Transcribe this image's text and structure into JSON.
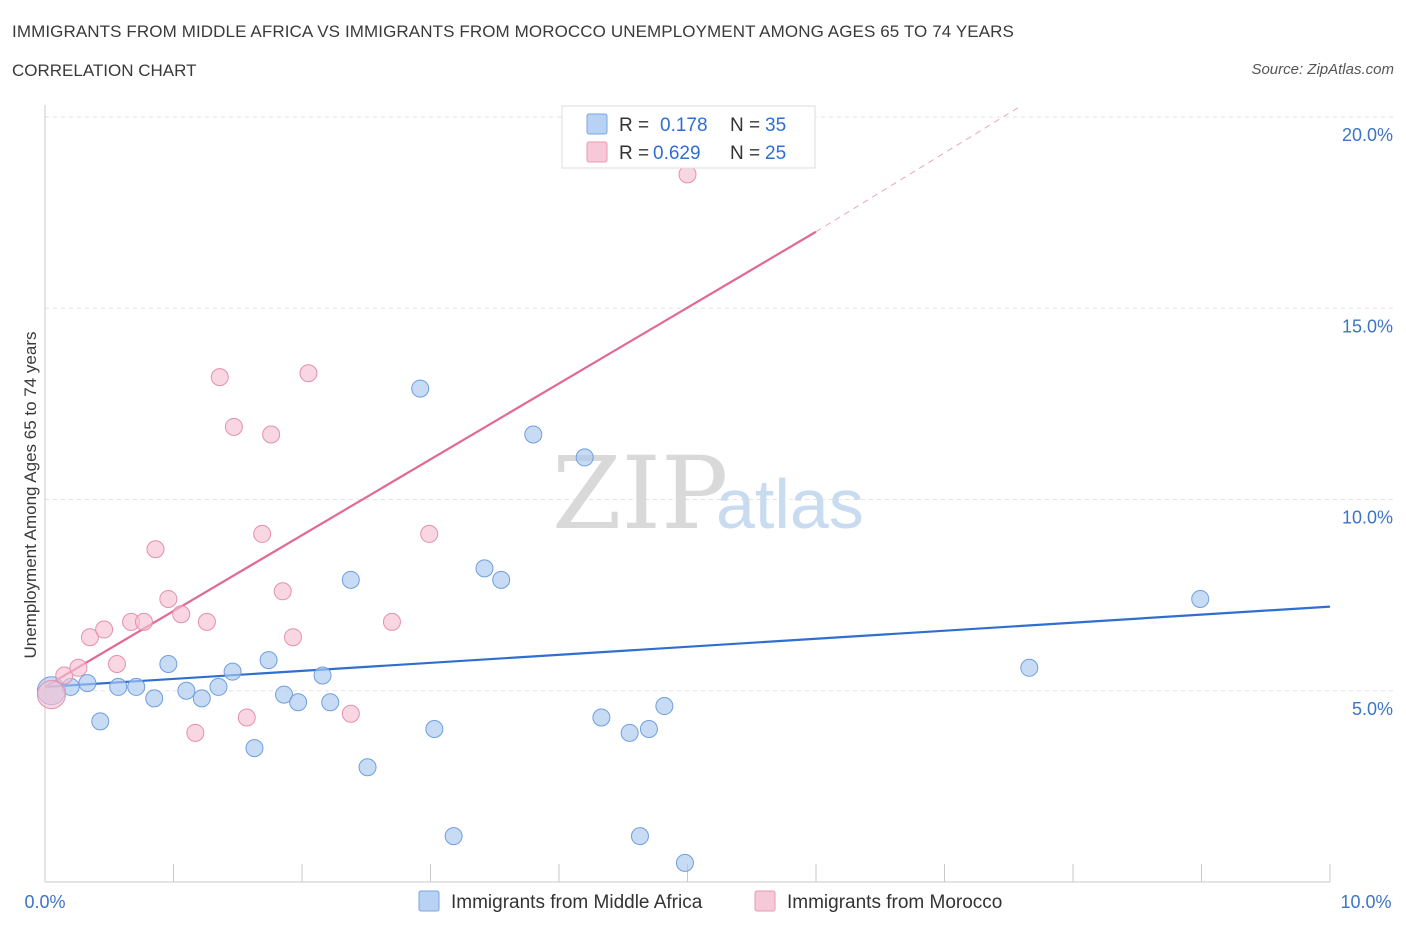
{
  "header": {
    "title": "IMMIGRANTS FROM MIDDLE AFRICA VS IMMIGRANTS FROM MOROCCO UNEMPLOYMENT AMONG AGES 65 TO 74 YEARS",
    "subtitle": "CORRELATION CHART",
    "source": "Source: ZipAtlas.com"
  },
  "watermark": {
    "zip": "ZIP",
    "atlas": "atlas"
  },
  "legend": {
    "rows": [
      {
        "r_label": "R =",
        "r_value": "0.178",
        "n_label": "N =",
        "n_value": "35"
      },
      {
        "r_label": "R =",
        "r_value": "0.629",
        "n_label": "N =",
        "n_value": "25"
      }
    ]
  },
  "chart_data": {
    "type": "scatter",
    "title": "IMMIGRANTS FROM MIDDLE AFRICA VS IMMIGRANTS FROM MOROCCO UNEMPLOYMENT AMONG AGES 65 TO 74 YEARS",
    "xlabel": "",
    "ylabel": "Unemployment Among Ages 65 to 74 years",
    "xlim": [
      0,
      10
    ],
    "ylim": [
      0,
      20
    ],
    "x_tick_labels": [
      "0.0%",
      "10.0%"
    ],
    "y_ticks": [
      5,
      10,
      15,
      20
    ],
    "y_tick_labels": [
      "5.0%",
      "10.0%",
      "15.0%",
      "20.0%"
    ],
    "grid": true,
    "series": [
      {
        "name": "Immigrants from Middle Africa",
        "color": "#a9c8f0",
        "stroke": "#6f9fdc",
        "line_color": "#2f6fcf",
        "trend": {
          "x": [
            0,
            10
          ],
          "y": [
            5.1,
            7.2
          ]
        },
        "points": [
          {
            "x": 0.05,
            "y": 5.0
          },
          {
            "x": 0.2,
            "y": 5.1
          },
          {
            "x": 0.33,
            "y": 5.2
          },
          {
            "x": 0.43,
            "y": 4.2
          },
          {
            "x": 0.57,
            "y": 5.1
          },
          {
            "x": 0.71,
            "y": 5.1
          },
          {
            "x": 0.85,
            "y": 4.8
          },
          {
            "x": 0.96,
            "y": 5.7
          },
          {
            "x": 1.1,
            "y": 5.0
          },
          {
            "x": 1.22,
            "y": 4.8
          },
          {
            "x": 1.35,
            "y": 5.1
          },
          {
            "x": 1.46,
            "y": 5.5
          },
          {
            "x": 1.63,
            "y": 3.5
          },
          {
            "x": 1.74,
            "y": 5.8
          },
          {
            "x": 1.86,
            "y": 4.9
          },
          {
            "x": 1.97,
            "y": 4.7
          },
          {
            "x": 2.16,
            "y": 5.4
          },
          {
            "x": 2.22,
            "y": 4.7
          },
          {
            "x": 2.38,
            "y": 7.9
          },
          {
            "x": 2.51,
            "y": 3.0
          },
          {
            "x": 2.92,
            "y": 12.9
          },
          {
            "x": 3.03,
            "y": 4.0
          },
          {
            "x": 3.18,
            "y": 1.2
          },
          {
            "x": 3.42,
            "y": 8.2
          },
          {
            "x": 3.55,
            "y": 7.9
          },
          {
            "x": 3.8,
            "y": 11.7
          },
          {
            "x": 4.2,
            "y": 11.1
          },
          {
            "x": 4.33,
            "y": 4.3
          },
          {
            "x": 4.55,
            "y": 3.9
          },
          {
            "x": 4.63,
            "y": 1.2
          },
          {
            "x": 4.7,
            "y": 4.0
          },
          {
            "x": 4.82,
            "y": 4.6
          },
          {
            "x": 4.98,
            "y": 0.5
          },
          {
            "x": 7.66,
            "y": 5.6
          },
          {
            "x": 8.99,
            "y": 7.4
          }
        ]
      },
      {
        "name": "Immigrants from Morocco",
        "color": "#f6c1d2",
        "stroke": "#e58fae",
        "line_color": "#e06a93",
        "trend": {
          "x": [
            0,
            6.0
          ],
          "y": [
            5.1,
            17.0
          ]
        },
        "trend_extension": {
          "x": [
            6.0,
            7.6
          ],
          "y": [
            17.0,
            20.3
          ]
        },
        "points": [
          {
            "x": 0.05,
            "y": 4.9
          },
          {
            "x": 0.15,
            "y": 5.4
          },
          {
            "x": 0.26,
            "y": 5.6
          },
          {
            "x": 0.35,
            "y": 6.4
          },
          {
            "x": 0.46,
            "y": 6.6
          },
          {
            "x": 0.56,
            "y": 5.7
          },
          {
            "x": 0.67,
            "y": 6.8
          },
          {
            "x": 0.77,
            "y": 6.8
          },
          {
            "x": 0.86,
            "y": 8.7
          },
          {
            "x": 0.96,
            "y": 7.4
          },
          {
            "x": 1.06,
            "y": 7.0
          },
          {
            "x": 1.17,
            "y": 3.9
          },
          {
            "x": 1.26,
            "y": 6.8
          },
          {
            "x": 1.36,
            "y": 13.2
          },
          {
            "x": 1.47,
            "y": 11.9
          },
          {
            "x": 1.57,
            "y": 4.3
          },
          {
            "x": 1.69,
            "y": 9.1
          },
          {
            "x": 1.76,
            "y": 11.7
          },
          {
            "x": 1.85,
            "y": 7.6
          },
          {
            "x": 1.93,
            "y": 6.4
          },
          {
            "x": 2.05,
            "y": 13.3
          },
          {
            "x": 2.38,
            "y": 4.4
          },
          {
            "x": 2.7,
            "y": 6.8
          },
          {
            "x": 2.99,
            "y": 9.1
          },
          {
            "x": 5.0,
            "y": 18.5
          }
        ]
      }
    ]
  }
}
